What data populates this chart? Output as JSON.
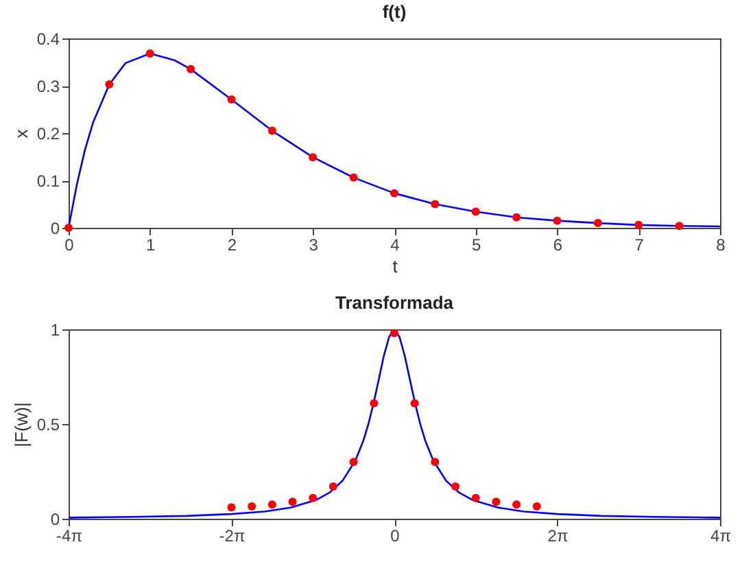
{
  "chart_data": [
    {
      "type": "line",
      "title": "f(t)",
      "xlabel": "t",
      "ylabel": "x",
      "xlim": [
        0,
        8
      ],
      "xticks": [
        0,
        1,
        2,
        3,
        4,
        5,
        6,
        7,
        8
      ],
      "ylim": [
        0,
        0.4
      ],
      "yticks": [
        0,
        0.1,
        0.2,
        0.3,
        0.4
      ],
      "grid": false,
      "series": [
        {
          "type": "line",
          "color": "#0000ff",
          "marker": "none",
          "x": [
            0,
            0.1,
            0.2,
            0.3,
            0.5,
            0.7,
            1,
            1.3,
            1.5,
            2,
            2.5,
            3,
            3.5,
            4,
            4.5,
            5,
            5.5,
            6,
            6.5,
            7,
            7.5,
            8
          ],
          "values": [
            0,
            0.09,
            0.164,
            0.222,
            0.303,
            0.348,
            0.368,
            0.354,
            0.335,
            0.271,
            0.205,
            0.149,
            0.106,
            0.073,
            0.05,
            0.034,
            0.022,
            0.015,
            0.01,
            0.006,
            0.004,
            0.003
          ]
        },
        {
          "type": "scatter",
          "color": "#ff0000",
          "marker": "circle",
          "x": [
            0,
            0.5,
            1,
            1.5,
            2,
            2.5,
            3,
            3.5,
            4,
            4.5,
            5,
            5.5,
            6,
            6.5,
            7,
            7.5
          ],
          "values": [
            0,
            0.303,
            0.368,
            0.335,
            0.271,
            0.205,
            0.149,
            0.106,
            0.073,
            0.05,
            0.034,
            0.022,
            0.015,
            0.01,
            0.006,
            0.004
          ]
        }
      ]
    },
    {
      "type": "line",
      "title": "Transformada",
      "ylabel": "|F(w)|",
      "xlim": [
        -12.566,
        12.566
      ],
      "xticks": [
        {
          "value": -12.566,
          "label": "-4π"
        },
        {
          "value": -6.283,
          "label": "-2π"
        },
        0,
        {
          "value": 6.283,
          "label": "2π"
        },
        {
          "value": 12.566,
          "label": "4π"
        }
      ],
      "ylim": [
        0,
        1
      ],
      "yticks": [
        0,
        0.5,
        1
      ],
      "grid": false,
      "series": [
        {
          "type": "line",
          "color": "#0000ff",
          "marker": "none",
          "x": [
            -12.566,
            -10,
            -8,
            -6.283,
            -5,
            -4,
            -3,
            -2.5,
            -2,
            -1.5,
            -1.2,
            -1,
            -0.8,
            -0.6,
            -0.4,
            -0.2,
            0,
            0.2,
            0.4,
            0.6,
            0.8,
            1,
            1.2,
            1.5,
            2,
            2.5,
            3,
            4,
            5,
            6.283,
            8,
            10,
            12.566
          ],
          "values": [
            0.006,
            0.01,
            0.015,
            0.025,
            0.038,
            0.059,
            0.1,
            0.138,
            0.2,
            0.308,
            0.41,
            0.5,
            0.61,
            0.735,
            0.862,
            0.96,
            1,
            0.96,
            0.862,
            0.735,
            0.61,
            0.5,
            0.41,
            0.308,
            0.2,
            0.138,
            0.1,
            0.059,
            0.038,
            0.025,
            0.015,
            0.01,
            0.006
          ]
        },
        {
          "type": "scatter",
          "color": "#ff0000",
          "marker": "circle",
          "x": [
            -6.283,
            -5.498,
            -4.712,
            -3.927,
            -3.142,
            -2.356,
            -1.571,
            -0.785,
            0,
            0.785,
            1.571,
            2.356,
            3.142,
            3.927,
            4.712,
            5.498
          ],
          "values": [
            0.06,
            0.065,
            0.075,
            0.09,
            0.11,
            0.17,
            0.3,
            0.61,
            0.98,
            0.61,
            0.3,
            0.17,
            0.11,
            0.09,
            0.075,
            0.065
          ]
        }
      ]
    }
  ]
}
